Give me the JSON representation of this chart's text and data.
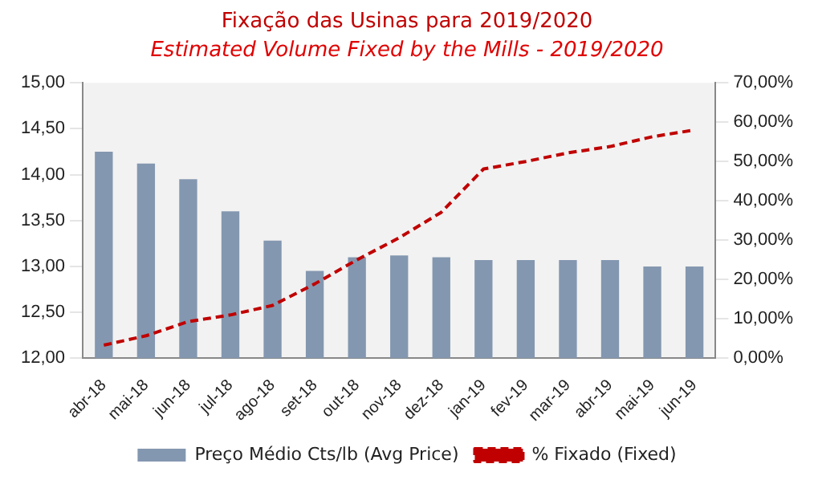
{
  "chart_data": {
    "type": "bar",
    "title": "Fixação das Usinas para 2019/2020",
    "subtitle": "Estimated Volume Fixed by the Mills - 2019/2020",
    "categories": [
      "abr-18",
      "mai-18",
      "jun-18",
      "jul-18",
      "ago-18",
      "set-18",
      "out-18",
      "nov-18",
      "dez-18",
      "jan-19",
      "fev-19",
      "mar-19",
      "abr-19",
      "mai-19",
      "jun-19"
    ],
    "series": [
      {
        "name": "Preço Médio Cts/lb (Avg Price)",
        "color": "#8497b0",
        "values": [
          14.25,
          14.12,
          13.95,
          13.6,
          13.28,
          12.95,
          13.1,
          13.12,
          13.1,
          13.07,
          13.07,
          13.07,
          13.07,
          13.0,
          13.0
        ]
      },
      {
        "name": "% Fixado (Fixed)",
        "type": "line",
        "axis": "y2",
        "color": "#c00000",
        "line_style": "dashed",
        "values": [
          3.3,
          5.7,
          9.3,
          11,
          13.4,
          18.9,
          25,
          30.6,
          37.1,
          48.1,
          50,
          52.2,
          53.8,
          56.3,
          58
        ]
      }
    ],
    "ylim": [
      12,
      15
    ],
    "yticks": [
      {
        "value": 12,
        "label": "12,00"
      },
      {
        "value": 12.5,
        "label": "12,50"
      },
      {
        "value": 13,
        "label": "13,00"
      },
      {
        "value": 13.5,
        "label": "13,50"
      },
      {
        "value": 14,
        "label": "14,00"
      },
      {
        "value": 14.5,
        "label": "14,50"
      },
      {
        "value": 15,
        "label": "15,00"
      }
    ],
    "y2lim": [
      0,
      70
    ],
    "y2ticks": [
      {
        "value": 0,
        "label": "0,00%"
      },
      {
        "value": 10,
        "label": "10,00%"
      },
      {
        "value": 20,
        "label": "20,00%"
      },
      {
        "value": 30,
        "label": "30,00%"
      },
      {
        "value": 40,
        "label": "40,00%"
      },
      {
        "value": 50,
        "label": "50,00%"
      },
      {
        "value": 60,
        "label": "60,00%"
      },
      {
        "value": 70,
        "label": "70,00%"
      }
    ],
    "grid": false,
    "legend": "bottom"
  }
}
